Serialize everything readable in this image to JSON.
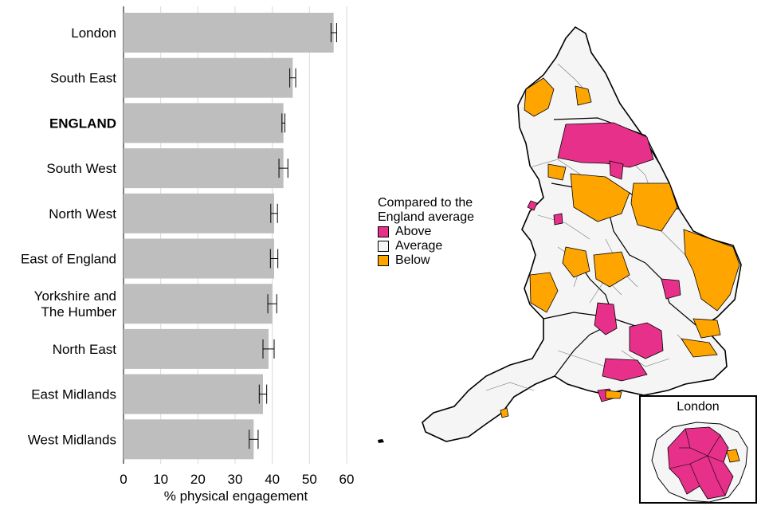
{
  "chart_data": {
    "type": "bar",
    "orientation": "horizontal",
    "categories": [
      "London",
      "South East",
      "ENGLAND",
      "South West",
      "North West",
      "East of England",
      "Yorkshire and The Humber",
      "North East",
      "East Midlands",
      "West Midlands"
    ],
    "category_lines": [
      [
        "London"
      ],
      [
        "South East"
      ],
      [
        "ENGLAND"
      ],
      [
        "South West"
      ],
      [
        "North West"
      ],
      [
        "East of England"
      ],
      [
        "Yorkshire and",
        "The Humber"
      ],
      [
        "North East"
      ],
      [
        "East Midlands"
      ],
      [
        "West Midlands"
      ]
    ],
    "bold_category": "ENGLAND",
    "values": [
      56.5,
      45.5,
      43.0,
      43.0,
      40.5,
      40.5,
      40.0,
      39.0,
      37.5,
      35.0
    ],
    "ci_low": [
      55.8,
      44.7,
      42.6,
      41.8,
      39.6,
      39.5,
      38.8,
      37.5,
      36.5,
      33.8
    ],
    "ci_high": [
      57.3,
      46.3,
      43.4,
      44.2,
      41.4,
      41.5,
      41.2,
      40.5,
      38.5,
      36.2
    ],
    "xlabel": "% physical engagement",
    "xlim": [
      0,
      60
    ],
    "xticks": [
      "0",
      "10",
      "20",
      "30",
      "40",
      "50",
      "60"
    ],
    "bar_color": "#bebebe",
    "grid": true
  },
  "map": {
    "legend_title_lines": [
      "Compared to the",
      "England average"
    ],
    "legend_items": [
      {
        "label": "Above",
        "color": "#e6308a"
      },
      {
        "label": "Average",
        "color": "#f5f5f5"
      },
      {
        "label": "Below",
        "color": "#ffa500"
      }
    ],
    "inset_title": "London"
  }
}
